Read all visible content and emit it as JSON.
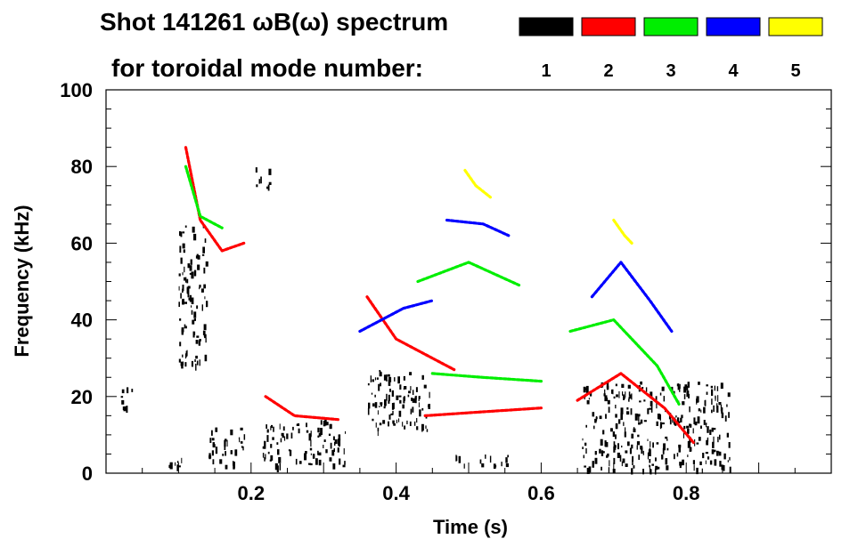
{
  "chart_data": {
    "type": "spectrogram",
    "title": "Shot 141261 ωB(ω) spectrum",
    "subtitle": "for toroidal mode number:",
    "xlabel": "Time (s)",
    "ylabel": "Frequency (kHz)",
    "xlim": [
      0.0,
      1.0
    ],
    "ylim": [
      0,
      100
    ],
    "x_ticks": [
      0.2,
      0.4,
      0.6,
      0.8
    ],
    "x_tick_labels": [
      "0.2",
      "0.4",
      "0.6",
      "0.8"
    ],
    "y_ticks": [
      0,
      20,
      40,
      60,
      80,
      100
    ],
    "y_tick_labels": [
      "0",
      "20",
      "40",
      "60",
      "80",
      "100"
    ],
    "legend": [
      {
        "mode": "1",
        "color": "#000000"
      },
      {
        "mode": "2",
        "color": "#ff0000"
      },
      {
        "mode": "3",
        "color": "#00ee00"
      },
      {
        "mode": "4",
        "color": "#0000ff"
      },
      {
        "mode": "5",
        "color": "#ffff00"
      }
    ],
    "series": [
      {
        "name": "1",
        "color": "#000000",
        "kind": "blobs",
        "blobs": [
          {
            "t": [
              0.02,
              0.035
            ],
            "f": [
              16,
              25
            ]
          },
          {
            "t": [
              0.085,
              0.105
            ],
            "f": [
              2,
              5
            ]
          },
          {
            "t": [
              0.1,
              0.14
            ],
            "f": [
              28,
              65
            ]
          },
          {
            "t": [
              0.14,
              0.19
            ],
            "f": [
              2,
              12
            ]
          },
          {
            "t": [
              0.205,
              0.225
            ],
            "f": [
              74,
              80
            ]
          },
          {
            "t": [
              0.215,
              0.33
            ],
            "f": [
              2,
              14
            ]
          },
          {
            "t": [
              0.36,
              0.455
            ],
            "f": [
              11,
              27
            ]
          },
          {
            "t": [
              0.48,
              0.56
            ],
            "f": [
              2,
              5
            ]
          },
          {
            "t": [
              0.655,
              0.86
            ],
            "f": [
              1,
              24
            ]
          }
        ]
      },
      {
        "name": "2",
        "color": "#ff0000",
        "kind": "lines",
        "lines": [
          {
            "t": [
              0.11,
              0.13,
              0.16,
              0.19
            ],
            "f": [
              85,
              66,
              58,
              60
            ]
          },
          {
            "t": [
              0.22,
              0.26,
              0.32
            ],
            "f": [
              20,
              15,
              14
            ]
          },
          {
            "t": [
              0.36,
              0.4,
              0.45,
              0.48
            ],
            "f": [
              46,
              35,
              30,
              27
            ]
          },
          {
            "t": [
              0.44,
              0.52,
              0.6
            ],
            "f": [
              15,
              16,
              17
            ]
          },
          {
            "t": [
              0.65,
              0.71,
              0.77,
              0.81
            ],
            "f": [
              19,
              26,
              17,
              8
            ]
          }
        ]
      },
      {
        "name": "3",
        "color": "#00ee00",
        "kind": "lines",
        "lines": [
          {
            "t": [
              0.11,
              0.13,
              0.16
            ],
            "f": [
              80,
              67,
              64
            ]
          },
          {
            "t": [
              0.43,
              0.5,
              0.57
            ],
            "f": [
              50,
              55,
              49
            ]
          },
          {
            "t": [
              0.45,
              0.52,
              0.6
            ],
            "f": [
              26,
              25,
              24
            ]
          },
          {
            "t": [
              0.64,
              0.7,
              0.76,
              0.79
            ],
            "f": [
              37,
              40,
              28,
              18
            ]
          }
        ]
      },
      {
        "name": "4",
        "color": "#0000ff",
        "kind": "lines",
        "lines": [
          {
            "t": [
              0.47,
              0.52,
              0.555
            ],
            "f": [
              66,
              65,
              62
            ]
          },
          {
            "t": [
              0.35,
              0.41,
              0.45
            ],
            "f": [
              37,
              43,
              45
            ]
          },
          {
            "t": [
              0.67,
              0.71,
              0.75,
              0.78
            ],
            "f": [
              46,
              55,
              45,
              37
            ]
          }
        ]
      },
      {
        "name": "5",
        "color": "#ffff00",
        "kind": "lines",
        "lines": [
          {
            "t": [
              0.495,
              0.51,
              0.53
            ],
            "f": [
              79,
              75,
              72
            ]
          },
          {
            "t": [
              0.7,
              0.715,
              0.725
            ],
            "f": [
              66,
              62,
              60
            ]
          }
        ]
      }
    ]
  }
}
